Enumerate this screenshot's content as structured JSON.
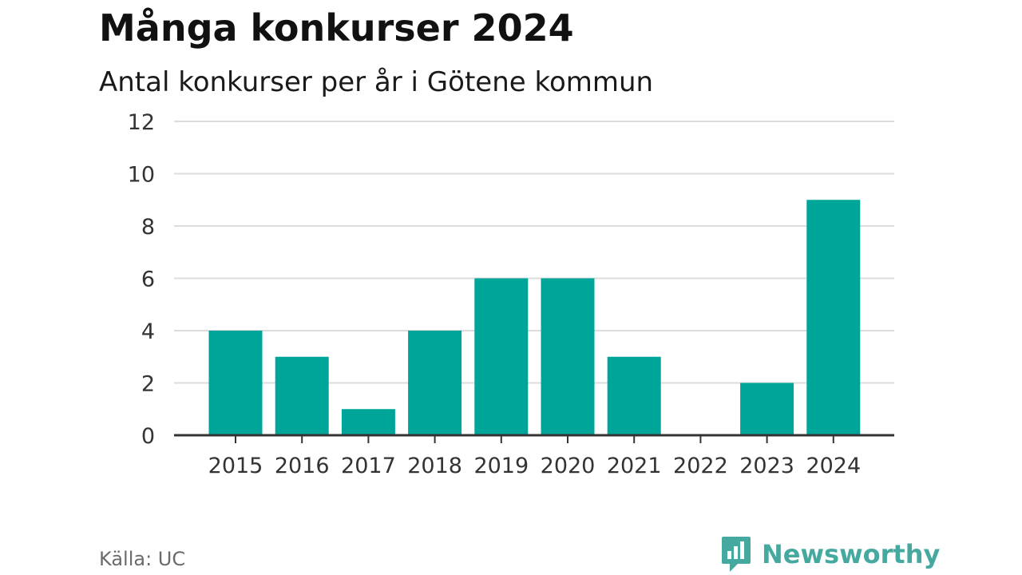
{
  "title": "Många konkurser 2024",
  "subtitle": "Antal konkurser per år i Götene kommun",
  "source": "Källa: UC",
  "brand": "Newsworthy",
  "colors": {
    "bar": "#00a59a",
    "grid": "#dcdcdc",
    "axis": "#333333",
    "brand": "#45a9a0"
  },
  "chart_data": {
    "type": "bar",
    "categories": [
      "2015",
      "2016",
      "2017",
      "2018",
      "2019",
      "2020",
      "2021",
      "2022",
      "2023",
      "2024"
    ],
    "values": [
      4,
      3,
      1,
      4,
      6,
      6,
      3,
      0,
      2,
      9
    ],
    "title": "Många konkurser 2024",
    "subtitle": "Antal konkurser per år i Götene kommun",
    "xlabel": "",
    "ylabel": "",
    "ylim": [
      0,
      12
    ],
    "yticks": [
      "0",
      "2",
      "4",
      "6",
      "8",
      "10",
      "12"
    ],
    "grid": true,
    "legend": "none"
  }
}
